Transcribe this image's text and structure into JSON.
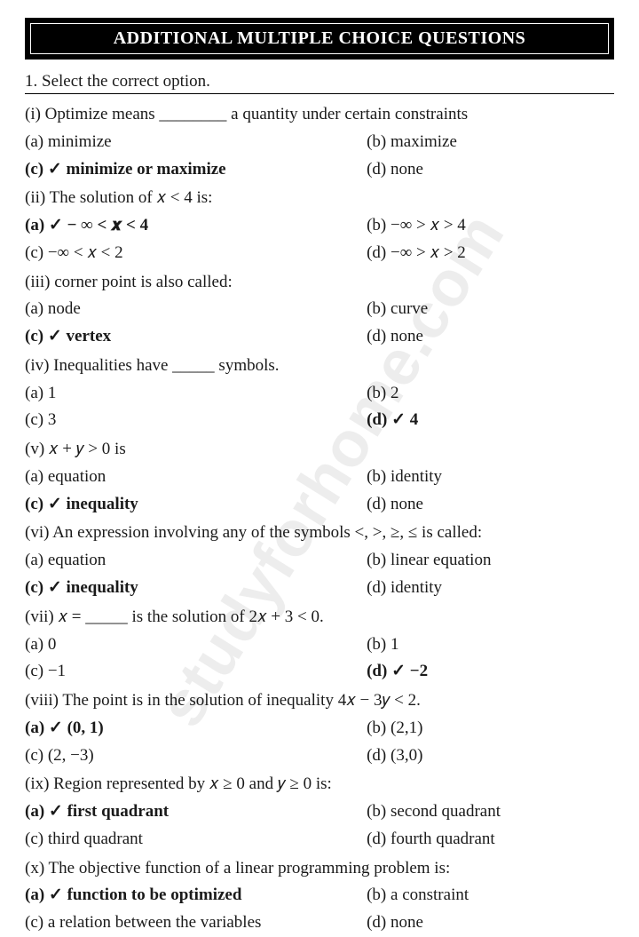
{
  "header": "ADDITIONAL MULTIPLE CHOICE QUESTIONS",
  "instruction": "1. Select the correct option.",
  "watermark": "studyforhome.com",
  "q": {
    "i": {
      "stem": "(i) Optimize means ________ a quantity under certain constraints",
      "a": "(a) minimize",
      "b": "(b) maximize",
      "c": "(c) ✓ minimize or maximize",
      "d": "(d) none"
    },
    "ii": {
      "stem": "(ii) The solution of 𝑥 < 4 is:",
      "a": "(a) ✓  − ∞ < 𝒙 < 4",
      "b": "(b) −∞ > 𝑥 > 4",
      "c": "(c) −∞ < 𝑥 < 2",
      "d": "(d) −∞ > 𝑥 > 2"
    },
    "iii": {
      "stem": "(iii) corner point is also called:",
      "a": "(a) node",
      "b": "(b) curve",
      "c": "(c) ✓ vertex",
      "d": "(d) none"
    },
    "iv": {
      "stem": "(iv) Inequalities have _____ symbols.",
      "a": "(a) 1",
      "b": "(b) 2",
      "c": "(c) 3",
      "d": "(d) ✓ 4"
    },
    "v": {
      "stem": "(v) 𝑥 + 𝑦 > 0 is",
      "a": "(a) equation",
      "b": "(b) identity",
      "c": "(c) ✓ inequality",
      "d": "(d) none"
    },
    "vi": {
      "stem": "(vi) An expression involving any of the symbols <, >, ≥, ≤ is called:",
      "a": "(a) equation",
      "b": "(b) linear equation",
      "c": "(c) ✓ inequality",
      "d": "(d) identity"
    },
    "vii": {
      "stem": "(vii) 𝑥 = _____ is the solution of 2𝑥 + 3 < 0.",
      "a": "(a) 0",
      "b": "(b) 1",
      "c": "(c) −1",
      "d": "(d) ✓ −2"
    },
    "viii": {
      "stem": "(viii) The point is in the solution of inequality 4𝑥 − 3𝑦 < 2.",
      "a": "(a) ✓ (0, 1)",
      "b": "(b) (2,1)",
      "c": "(c) (2, −3)",
      "d": "(d) (3,0)"
    },
    "ix": {
      "stem": "(ix) Region represented by 𝑥 ≥ 0 and 𝑦 ≥ 0 is:",
      "a": "(a) ✓ first quadrant",
      "b": "(b) second quadrant",
      "c": "(c) third quadrant",
      "d": "(d) fourth quadrant"
    },
    "x": {
      "stem": "(x) The objective function of a linear programming problem is:",
      "a": "(a) ✓ function to be optimized",
      "b": "(b) a constraint",
      "c": "(c) a relation between the variables",
      "d": "(d) none"
    }
  }
}
